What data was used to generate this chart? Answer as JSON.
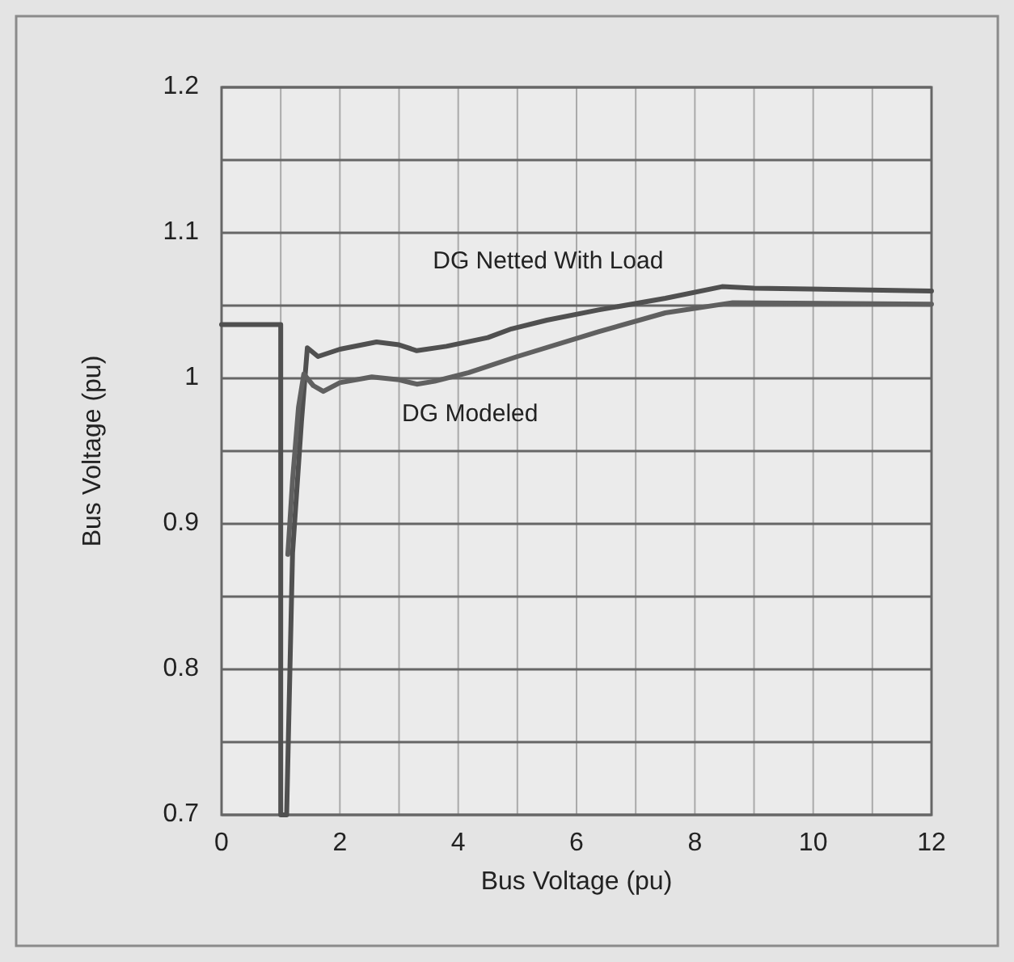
{
  "chart_data": {
    "type": "line",
    "xlabel": "Bus Voltage (pu)",
    "ylabel": "Bus Voltage (pu)",
    "xlim": [
      0,
      12
    ],
    "ylim": [
      0.7,
      1.2
    ],
    "xticks": [
      0,
      {
        "value": 1,
        "label": null
      },
      2,
      {
        "value": 3,
        "label": null
      },
      4,
      {
        "value": 5,
        "label": null
      },
      6,
      {
        "value": 7,
        "label": null
      },
      8,
      {
        "value": 9,
        "label": null
      },
      10,
      {
        "value": 11,
        "label": null
      },
      12
    ],
    "yticks": [
      0.7,
      {
        "value": 0.75,
        "label": null
      },
      0.8,
      {
        "value": 0.85,
        "label": null
      },
      0.9,
      {
        "value": 0.95,
        "label": null
      },
      {
        "value": 1,
        "label": "1"
      },
      {
        "value": 1.05,
        "label": null
      },
      1.1,
      {
        "value": 1.15,
        "label": null
      },
      1.2
    ],
    "grid": true,
    "marker": "none",
    "line_style": "solid",
    "series": [
      {
        "name": "DG Netted With Load",
        "color": "#505050",
        "x": [
          0,
          1.0,
          1.0,
          1.1,
          1.2,
          1.35,
          1.45,
          1.63,
          2.0,
          2.62,
          3.0,
          3.3,
          3.8,
          4.5,
          4.9,
          5.5,
          6.37,
          7.5,
          8.46,
          9,
          12
        ],
        "values": [
          1.037,
          1.037,
          0.7,
          0.7,
          0.88,
          0.97,
          1.021,
          1.015,
          1.02,
          1.025,
          1.023,
          1.019,
          1.022,
          1.028,
          1.034,
          1.04,
          1.047,
          1.055,
          1.063,
          1.062,
          1.06
        ]
      },
      {
        "name": "DG Modeled",
        "color": "#606060",
        "x": [
          1.12,
          1.2,
          1.3,
          1.39,
          1.55,
          1.72,
          2.0,
          2.54,
          3.0,
          3.3,
          3.6,
          4.18,
          5,
          6.37,
          7.5,
          8.64,
          12
        ],
        "values": [
          0.879,
          0.93,
          0.98,
          1.003,
          0.995,
          0.991,
          0.997,
          1.001,
          0.999,
          0.996,
          0.998,
          1.004,
          1.015,
          1.032,
          1.045,
          1.052,
          1.051
        ]
      }
    ]
  }
}
